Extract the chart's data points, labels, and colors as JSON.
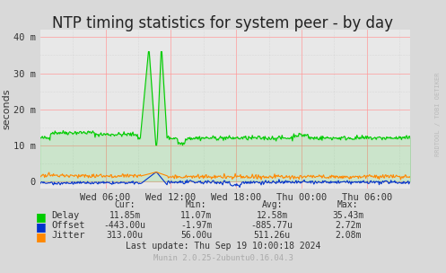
{
  "title": "NTP timing statistics for system peer - by day",
  "ylabel": "seconds",
  "background_color": "#d9d9d9",
  "plot_bg_color": "#e8e8e8",
  "grid_color_major": "#ff9999",
  "x_tick_labels": [
    "Wed 06:00",
    "Wed 12:00",
    "Wed 18:00",
    "Thu 00:00",
    "Thu 06:00"
  ],
  "y_tick_labels": [
    "0",
    "10 m",
    "20 m",
    "30 m",
    "40 m"
  ],
  "ylim": [
    -2,
    42
  ],
  "title_fontsize": 12,
  "axis_fontsize": 7.5,
  "label_fontsize": 8,
  "legend_items": [
    {
      "label": "Delay",
      "color": "#00cc00"
    },
    {
      "label": "Offset",
      "color": "#0033cc"
    },
    {
      "label": "Jitter",
      "color": "#ff8800"
    }
  ],
  "stats_header": [
    "Cur:",
    "Min:",
    "Avg:",
    "Max:"
  ],
  "stats_rows": [
    [
      "11.85m",
      "11.07m",
      "12.58m",
      "35.43m"
    ],
    [
      "-443.00u",
      "-1.97m",
      "-885.77u",
      "2.72m"
    ],
    [
      "313.00u",
      "56.00u",
      "511.26u",
      "2.08m"
    ]
  ],
  "last_update": "Last update: Thu Sep 19 10:00:18 2024",
  "munin_version": "Munin 2.0.25-2ubuntu0.16.04.3",
  "watermark": "RRDTOOL / TOBI OETIKER",
  "delay_color": "#00cc00",
  "offset_color": "#0033cc",
  "jitter_color": "#ff8800"
}
